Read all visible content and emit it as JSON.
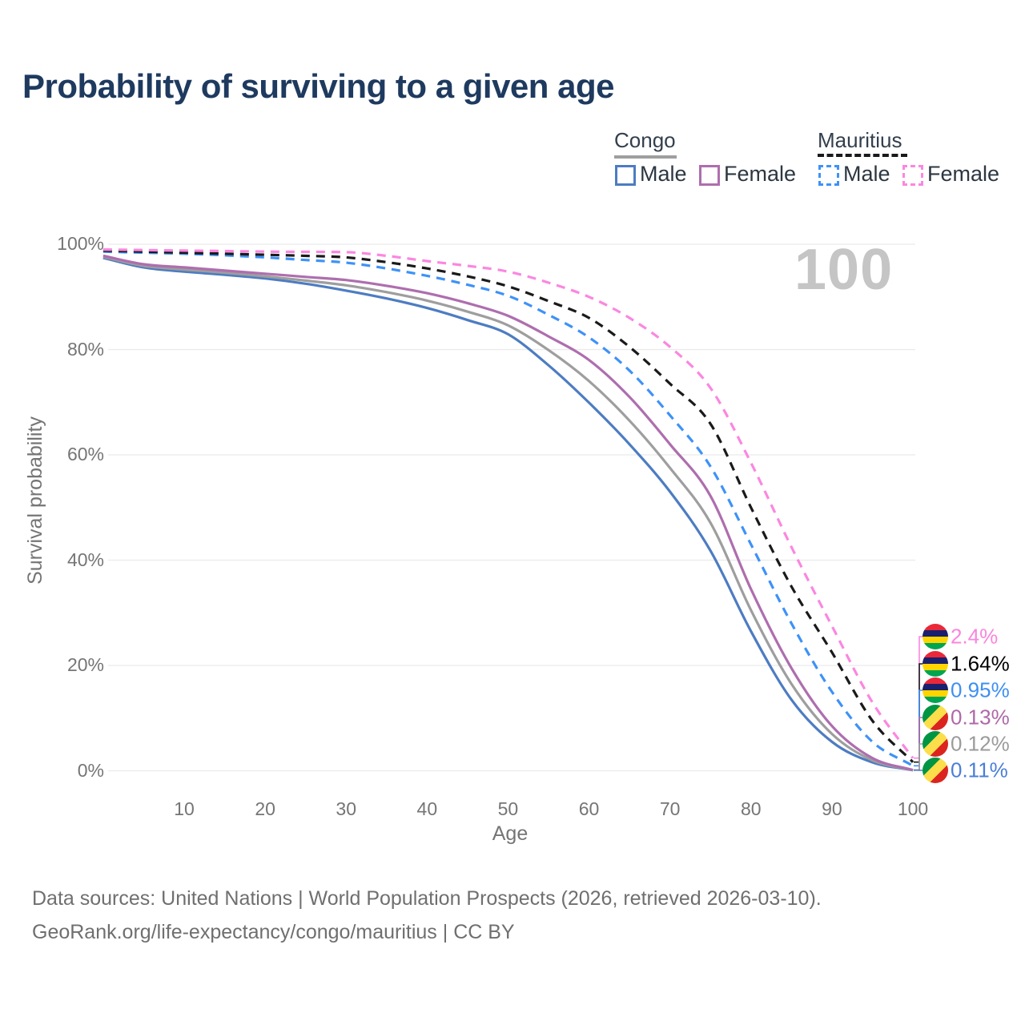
{
  "header": {
    "title": "Probability of surviving to a given age"
  },
  "watermark": {
    "text": "100"
  },
  "legend": {
    "groups": [
      {
        "country": "Congo",
        "style": "solid",
        "line_color": "#9e9e9e",
        "items": [
          {
            "label": "Male",
            "color": "#4d7cc2"
          },
          {
            "label": "Female",
            "color": "#ae6eae"
          }
        ]
      },
      {
        "country": "Mauritius",
        "style": "dashed",
        "line_color": "#1a1a1a",
        "items": [
          {
            "label": "Male",
            "color": "#3e92f7"
          },
          {
            "label": "Female",
            "color": "#fb87e0"
          }
        ]
      }
    ]
  },
  "chart_data": {
    "type": "line",
    "title": "Probability of surviving to a given age",
    "xlabel": "Age",
    "ylabel": "Survival probability",
    "xlim": [
      0,
      100
    ],
    "ylim": [
      0,
      100
    ],
    "grid": "horizontal",
    "x_ticks": [
      "10",
      "20",
      "30",
      "40",
      "50",
      "60",
      "70",
      "80",
      "90",
      "100"
    ],
    "x_tick_values": [
      10,
      20,
      30,
      40,
      50,
      60,
      70,
      80,
      90,
      100
    ],
    "y_ticks": [
      "0%",
      "20%",
      "40%",
      "60%",
      "80%",
      "100%"
    ],
    "y_tick_values": [
      0,
      20,
      40,
      60,
      80,
      100
    ],
    "x": [
      0,
      5,
      10,
      15,
      20,
      25,
      30,
      35,
      40,
      45,
      50,
      55,
      60,
      65,
      70,
      75,
      80,
      85,
      90,
      95,
      100
    ],
    "series": [
      {
        "id": "congo-male",
        "name": "Congo Male",
        "country": "Congo",
        "sex": "male",
        "color": "#4d7cc2",
        "dash": false,
        "flag": "congo",
        "end_label": "0.11%",
        "end_label_color": "#4a7ed8",
        "values": [
          97.4,
          95.6,
          94.8,
          94.2,
          93.5,
          92.5,
          91.2,
          89.7,
          87.9,
          85.6,
          82.9,
          77.0,
          69.9,
          62.0,
          53.0,
          41.8,
          26.5,
          13.5,
          5.5,
          1.6,
          0.11
        ]
      },
      {
        "id": "congo-both",
        "name": "Congo (both sexes)",
        "country": "Congo",
        "sex": "both",
        "color": "#9e9e9e",
        "dash": false,
        "flag": "congo",
        "end_label": "0.12%",
        "end_label_color": "#9b9b9b",
        "values": [
          97.6,
          95.9,
          95.2,
          94.6,
          93.9,
          93.1,
          92.2,
          90.9,
          89.3,
          87.2,
          84.6,
          79.9,
          74.0,
          66.5,
          57.5,
          47.1,
          30.5,
          16.5,
          7.0,
          2.0,
          0.12
        ]
      },
      {
        "id": "congo-female",
        "name": "Congo Female",
        "country": "Congo",
        "sex": "female",
        "color": "#ae6eae",
        "dash": false,
        "flag": "congo",
        "end_label": "0.13%",
        "end_label_color": "#af68a8",
        "values": [
          97.8,
          96.2,
          95.6,
          95.0,
          94.4,
          93.8,
          93.2,
          92.1,
          90.7,
          88.8,
          86.4,
          82.5,
          78.0,
          71.0,
          62.0,
          52.2,
          34.5,
          19.5,
          8.5,
          2.4,
          0.13
        ]
      },
      {
        "id": "mauritius-male",
        "name": "Mauritius Male",
        "country": "Mauritius",
        "sex": "male",
        "color": "#3e92f7",
        "dash": true,
        "flag": "mauritius",
        "end_label": "0.95%",
        "end_label_color": "#3e8ff2",
        "values": [
          98.6,
          98.4,
          98.2,
          97.9,
          97.5,
          97.0,
          96.5,
          95.4,
          94.0,
          92.3,
          90.2,
          86.6,
          82.3,
          76.0,
          67.5,
          57.8,
          43.0,
          28.0,
          15.0,
          5.5,
          0.95
        ]
      },
      {
        "id": "mauritius-both",
        "name": "Mauritius (both sexes)",
        "country": "Mauritius",
        "sex": "both",
        "color": "#1a1a1a",
        "dash": true,
        "flag": "mauritius",
        "end_label": "1.64%",
        "end_label_color": "#000000",
        "values": [
          98.8,
          98.6,
          98.4,
          98.2,
          98.0,
          97.8,
          97.5,
          96.6,
          95.4,
          93.9,
          92.0,
          89.2,
          86.0,
          80.5,
          73.5,
          65.9,
          50.0,
          35.0,
          22.5,
          9.5,
          1.64
        ]
      },
      {
        "id": "mauritius-female",
        "name": "Mauritius Female",
        "country": "Mauritius",
        "sex": "female",
        "color": "#fb87e0",
        "dash": true,
        "flag": "mauritius",
        "end_label": "2.4%",
        "end_label_color": "#fa85dd",
        "values": [
          99.0,
          98.9,
          98.8,
          98.7,
          98.6,
          98.55,
          98.5,
          97.8,
          96.8,
          95.9,
          94.8,
          92.7,
          90.0,
          86.0,
          80.5,
          72.7,
          58.5,
          42.5,
          27.5,
          13.0,
          2.4
        ]
      }
    ]
  },
  "footer": {
    "line1": "Data sources: United Nations | World Population Prospects (2026, retrieved 2026-03-10).",
    "line2": "GeoRank.org/life-expectancy/congo/mauritius | CC BY"
  }
}
